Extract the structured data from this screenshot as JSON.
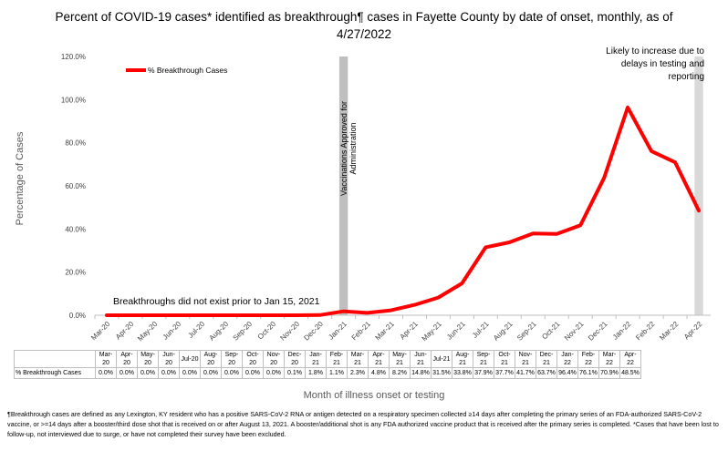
{
  "title": "Percent of COVID-19 cases* identified as breakthrough¶ cases in Fayette County by date of onset, monthly, as of 4/27/2022",
  "chart_data": {
    "type": "line",
    "title": "Percent of COVID-19 cases* identified as breakthrough¶ cases in Fayette County by date of onset, monthly, as of 4/27/2022",
    "xlabel": "Month of illness onset or testing",
    "ylabel": "Percentage of Cases",
    "ylim": [
      0,
      120
    ],
    "yticks": [
      "0.0%",
      "20.0%",
      "40.0%",
      "60.0%",
      "80.0%",
      "100.0%",
      "120.0%"
    ],
    "categories": [
      "Mar-20",
      "Apr-20",
      "May-20",
      "Jun-20",
      "Jul-20",
      "Aug-20",
      "Sep-20",
      "Oct-20",
      "Nov-20",
      "Dec-20",
      "Jan-21",
      "Feb-21",
      "Mar-21",
      "Apr-21",
      "May-21",
      "Jun-21",
      "Jul-21",
      "Aug-21",
      "Sep-21",
      "Oct-21",
      "Nov-21",
      "Dec-21",
      "Jan-22",
      "Feb-22",
      "Mar-22",
      "Apr-22"
    ],
    "table_categories": [
      "Mar-\n20",
      "Apr-\n20",
      "May-\n20",
      "Jun-\n20",
      "Jul-20",
      "Aug-\n20",
      "Sep-\n20",
      "Oct-\n20",
      "Nov-\n20",
      "Dec-\n20",
      "Jan-\n21",
      "Feb-\n21",
      "Mar-\n21",
      "Apr-\n21",
      "May-\n21",
      "Jun-\n21",
      "Jul-21",
      "Aug-\n21",
      "Sep-\n21",
      "Oct-\n21",
      "Nov-\n21",
      "Dec-\n21",
      "Jan-\n22",
      "Feb-\n22",
      "Mar-\n22",
      "Apr-\n22"
    ],
    "series": [
      {
        "name": "% Breakthrough Cases",
        "color": "#ff0000",
        "values": [
          0.0,
          0.0,
          0.0,
          0.0,
          0.0,
          0.0,
          0.0,
          0.0,
          0.0,
          0.1,
          1.8,
          1.1,
          2.3,
          4.8,
          8.2,
          14.8,
          31.5,
          33.8,
          37.9,
          37.7,
          41.7,
          63.7,
          96.4,
          76.1,
          70.9,
          48.5
        ],
        "labels": [
          "0.0%",
          "0.0%",
          "0.0%",
          "0.0%",
          "0.0%",
          "0.0%",
          "0.0%",
          "0.0%",
          "0.0%",
          "0.1%",
          "1.8%",
          "1.1%",
          "2.3%",
          "4.8%",
          "8.2%",
          "14.8%",
          "31.5%",
          "33.8%",
          "37.9%",
          "37.7%",
          "41.7%",
          "63.7%",
          "96.4%",
          "76.1%",
          "70.9%",
          "48.5%"
        ]
      }
    ],
    "legend": "top-left",
    "grid": false,
    "shaded_periods": [
      {
        "category": "Jan-21",
        "color": "#bfbfbf"
      },
      {
        "category": "Apr-22",
        "color": "#d9d9d9"
      }
    ],
    "annotations": {
      "vaccination": "Vaccinations Approved for Administration",
      "likely_increase": "Likely to increase due to delays in testing and reporting",
      "pre_breakthrough": "Breakthroughs did not exist prior to Jan 15, 2021"
    }
  },
  "table_row_label": "% Breakthrough Cases",
  "footnote": "¶Breakthrough cases are defined as any Lexington, KY resident who has a positive SARS-CoV-2 RNA or antigen detected on a respiratory specimen collected ≥14 days after completing the primary series of an FDA-authorized SARS-CoV-2 vaccine, or >=14 days after a booster/third dose shot that is received on or after August 13, 2021.  A booster/additional shot is any FDA authorized vaccine product that is received after the primary series is completed. *Cases that have been lost to follow-up, not interviewed due to surge, or have not completed their survey have been excluded."
}
